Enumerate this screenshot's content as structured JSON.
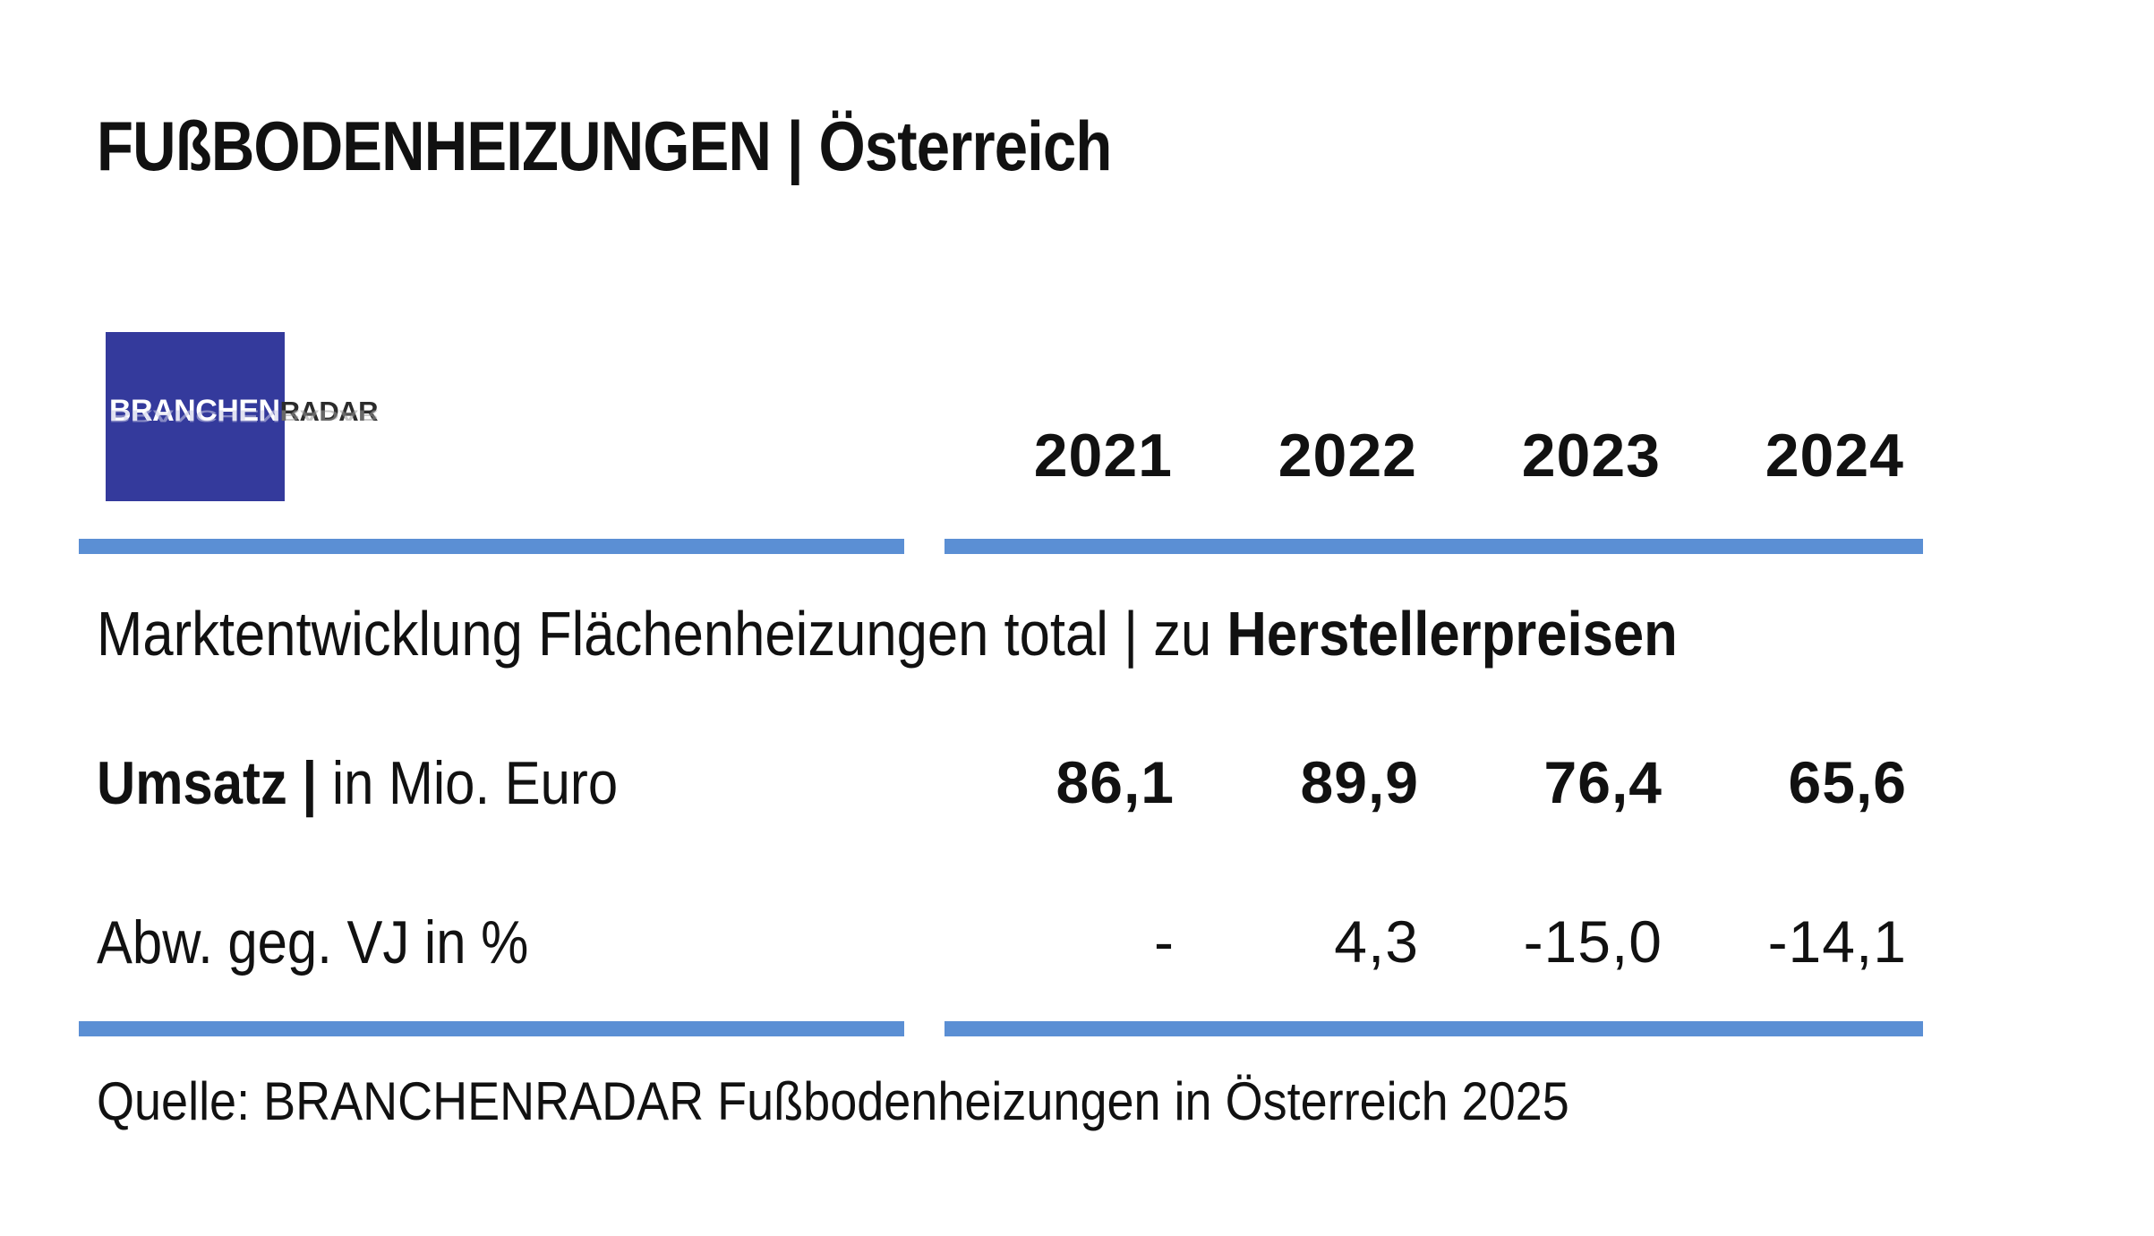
{
  "chart_data": {
    "type": "table",
    "title": "FUßBODENHEIZUNGEN | Österreich",
    "logo": {
      "brand_part1": "BRANCHEN",
      "brand_part2": "RADAR"
    },
    "years": [
      "2021",
      "2022",
      "2023",
      "2024"
    ],
    "subtitle": {
      "regular": "Marktentwicklung Flächenheizungen total | zu ",
      "bold": "Herstellerpreisen"
    },
    "rows": [
      {
        "label_bold": "Umsatz |",
        "label_regular": " in Mio. Euro",
        "values": [
          "86,1",
          "89,9",
          "76,4",
          "65,6"
        ]
      },
      {
        "label_bold": "",
        "label_regular": "Abw. geg. VJ in %",
        "values": [
          "-",
          "4,3",
          "-15,0",
          "-14,1"
        ]
      }
    ],
    "source": "Quelle: BRANCHENRADAR Fußbodenheizungen in Österreich 2025",
    "colors": {
      "rule": "#5b8fd4",
      "logo_background": "#343a9c",
      "text": "#111111"
    }
  }
}
